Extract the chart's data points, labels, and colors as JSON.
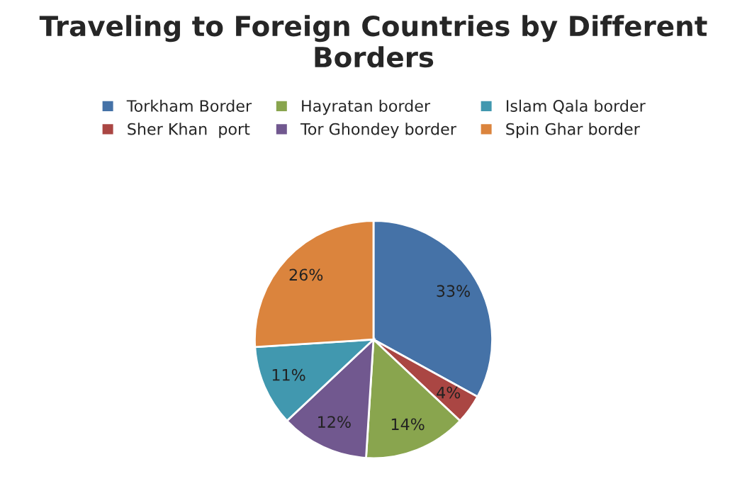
{
  "chart_data": {
    "type": "pie",
    "title": "Traveling to Foreign Countries by Different Borders",
    "categories": [
      "Torkham Border",
      "Sher Khan  port",
      "Hayratan border",
      "Tor Ghondey border",
      "Islam Qala border",
      "Spin Ghar border"
    ],
    "values": [
      33,
      4,
      14,
      12,
      11,
      26
    ],
    "colors": [
      "#4572a7",
      "#aa4643",
      "#89a54e",
      "#71588f",
      "#4198af",
      "#db843d"
    ],
    "value_labels": [
      "33%",
      "4%",
      "14%",
      "12%",
      "11%",
      "26%"
    ],
    "legend": "top"
  }
}
